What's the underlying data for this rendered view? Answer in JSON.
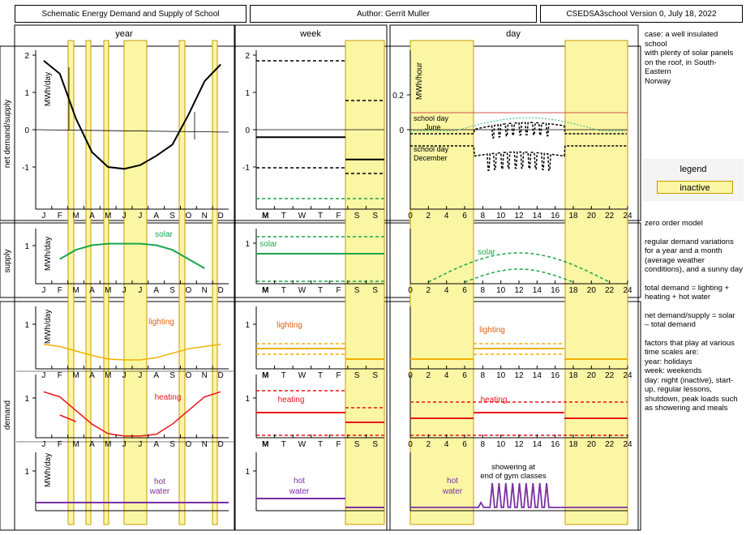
{
  "header": {
    "title": "Schematic Energy Demand and Supply of School",
    "author": "Author: Gerrit Muller",
    "version": "CSEDSA3school Version 0, July 18, 2022"
  },
  "columns": {
    "year": "year",
    "week": "week",
    "day": "day"
  },
  "rows": {
    "net": "net demand/supply",
    "supply": "supply",
    "demand": "demand"
  },
  "units": {
    "mwh_day": "MWh/day",
    "mwh_hour": "MWh/hour"
  },
  "axes": {
    "months": [
      "J",
      "F",
      "M",
      "A",
      "M",
      "J",
      "J",
      "A",
      "S",
      "O",
      "N",
      "D"
    ],
    "weekdays": [
      "M",
      "T",
      "W",
      "T",
      "F",
      "S",
      "S"
    ],
    "hours": [
      "0",
      "2",
      "4",
      "6",
      "8",
      "10",
      "12",
      "14",
      "16",
      "18",
      "20",
      "22",
      "24"
    ],
    "ticks": {
      "two": "2",
      "one": "1",
      "zero": "0",
      "minus_one": "-1",
      "hour_tick": "0.2"
    }
  },
  "labels": {
    "solar": "solar",
    "lighting": "lighting",
    "heating": "heating",
    "hot_water_line1": "hot",
    "hot_water_line2": "water",
    "school_day": "school day",
    "june": "June",
    "december": "December",
    "showering_line1": "showering at",
    "showering_line2": "end of gym classes"
  },
  "notes": {
    "case": [
      "case: a well insulated school",
      "with plenty of solar panels",
      "on the roof, in South-Eastern",
      "Norway"
    ],
    "model": [
      "zero order model",
      "",
      "regular demand variations",
      "for a year and a month",
      "(average weather",
      "conditions), and a sunny day",
      "",
      "total demand  = lighting +",
      "heating + hot water",
      "",
      "net demand/supply  = solar",
      "– total demand",
      "",
      "factors that play at various",
      "time scales are:",
      "year: holidays",
      "week: weekends",
      "day: night (inactive), start-",
      "up, regular lessons,",
      "shutdown, peak loads such",
      "as showering and meals"
    ]
  },
  "legend": {
    "title": "legend",
    "inactive": "inactive"
  },
  "colors": {
    "inactive_fill": "#fbf6a4",
    "inactive_edge": "#c79a00",
    "solar": "#1aa64b",
    "lighting": "#f0b000",
    "heating": "#e8141b",
    "hot_water": "#7a2fa3",
    "net": "#000000",
    "june_ref": "#2ab58a",
    "day_ref": "#d05050"
  },
  "chart_data": {
    "type": "line",
    "year_net_demand_mwh_day": [
      1.85,
      1.5,
      0.3,
      -0.6,
      -1.0,
      -1.05,
      -0.95,
      -0.7,
      -0.4,
      0.4,
      1.3,
      1.75
    ],
    "year_solar_mwh_day": [
      0.55,
      0.8,
      1.1,
      1.25,
      1.3,
      1.3,
      1.3,
      1.25,
      1.1,
      0.8,
      0.5,
      0.4
    ],
    "year_lighting_mwh_day": [
      0.55,
      0.5,
      0.4,
      0.3,
      0.22,
      0.2,
      0.2,
      0.25,
      0.35,
      0.45,
      0.5,
      0.55
    ],
    "year_heating_mwh_day": [
      1.35,
      1.2,
      0.8,
      0.4,
      0.12,
      0.05,
      0.05,
      0.1,
      0.4,
      0.8,
      1.2,
      1.35
    ],
    "year_hot_water_mwh_day": [
      0.18,
      0.18,
      0.18,
      0.18,
      0.18,
      0.18,
      0.18,
      0.18,
      0.18,
      0.18,
      0.18,
      0.18
    ],
    "week_net_mwh_day": {
      "weekday": -0.2,
      "weekend": -0.8
    },
    "week_solar_mwh_day": {
      "average": 0.9,
      "max": 1.2,
      "min": 0.1
    },
    "day_solar_peak_mwh_hour": 0.1,
    "day_net_june_range_mwh_hour": [
      0.0,
      0.06
    ],
    "day_net_december_range_mwh_hour": [
      -0.2,
      -0.05
    ],
    "day_inactive_hours": [
      [
        0,
        7
      ],
      [
        17,
        24
      ]
    ],
    "week_inactive_days": [
      "S",
      "S"
    ],
    "year_inactive_months": [
      "F",
      "M",
      "A",
      "J",
      "J",
      "O",
      "D"
    ]
  }
}
